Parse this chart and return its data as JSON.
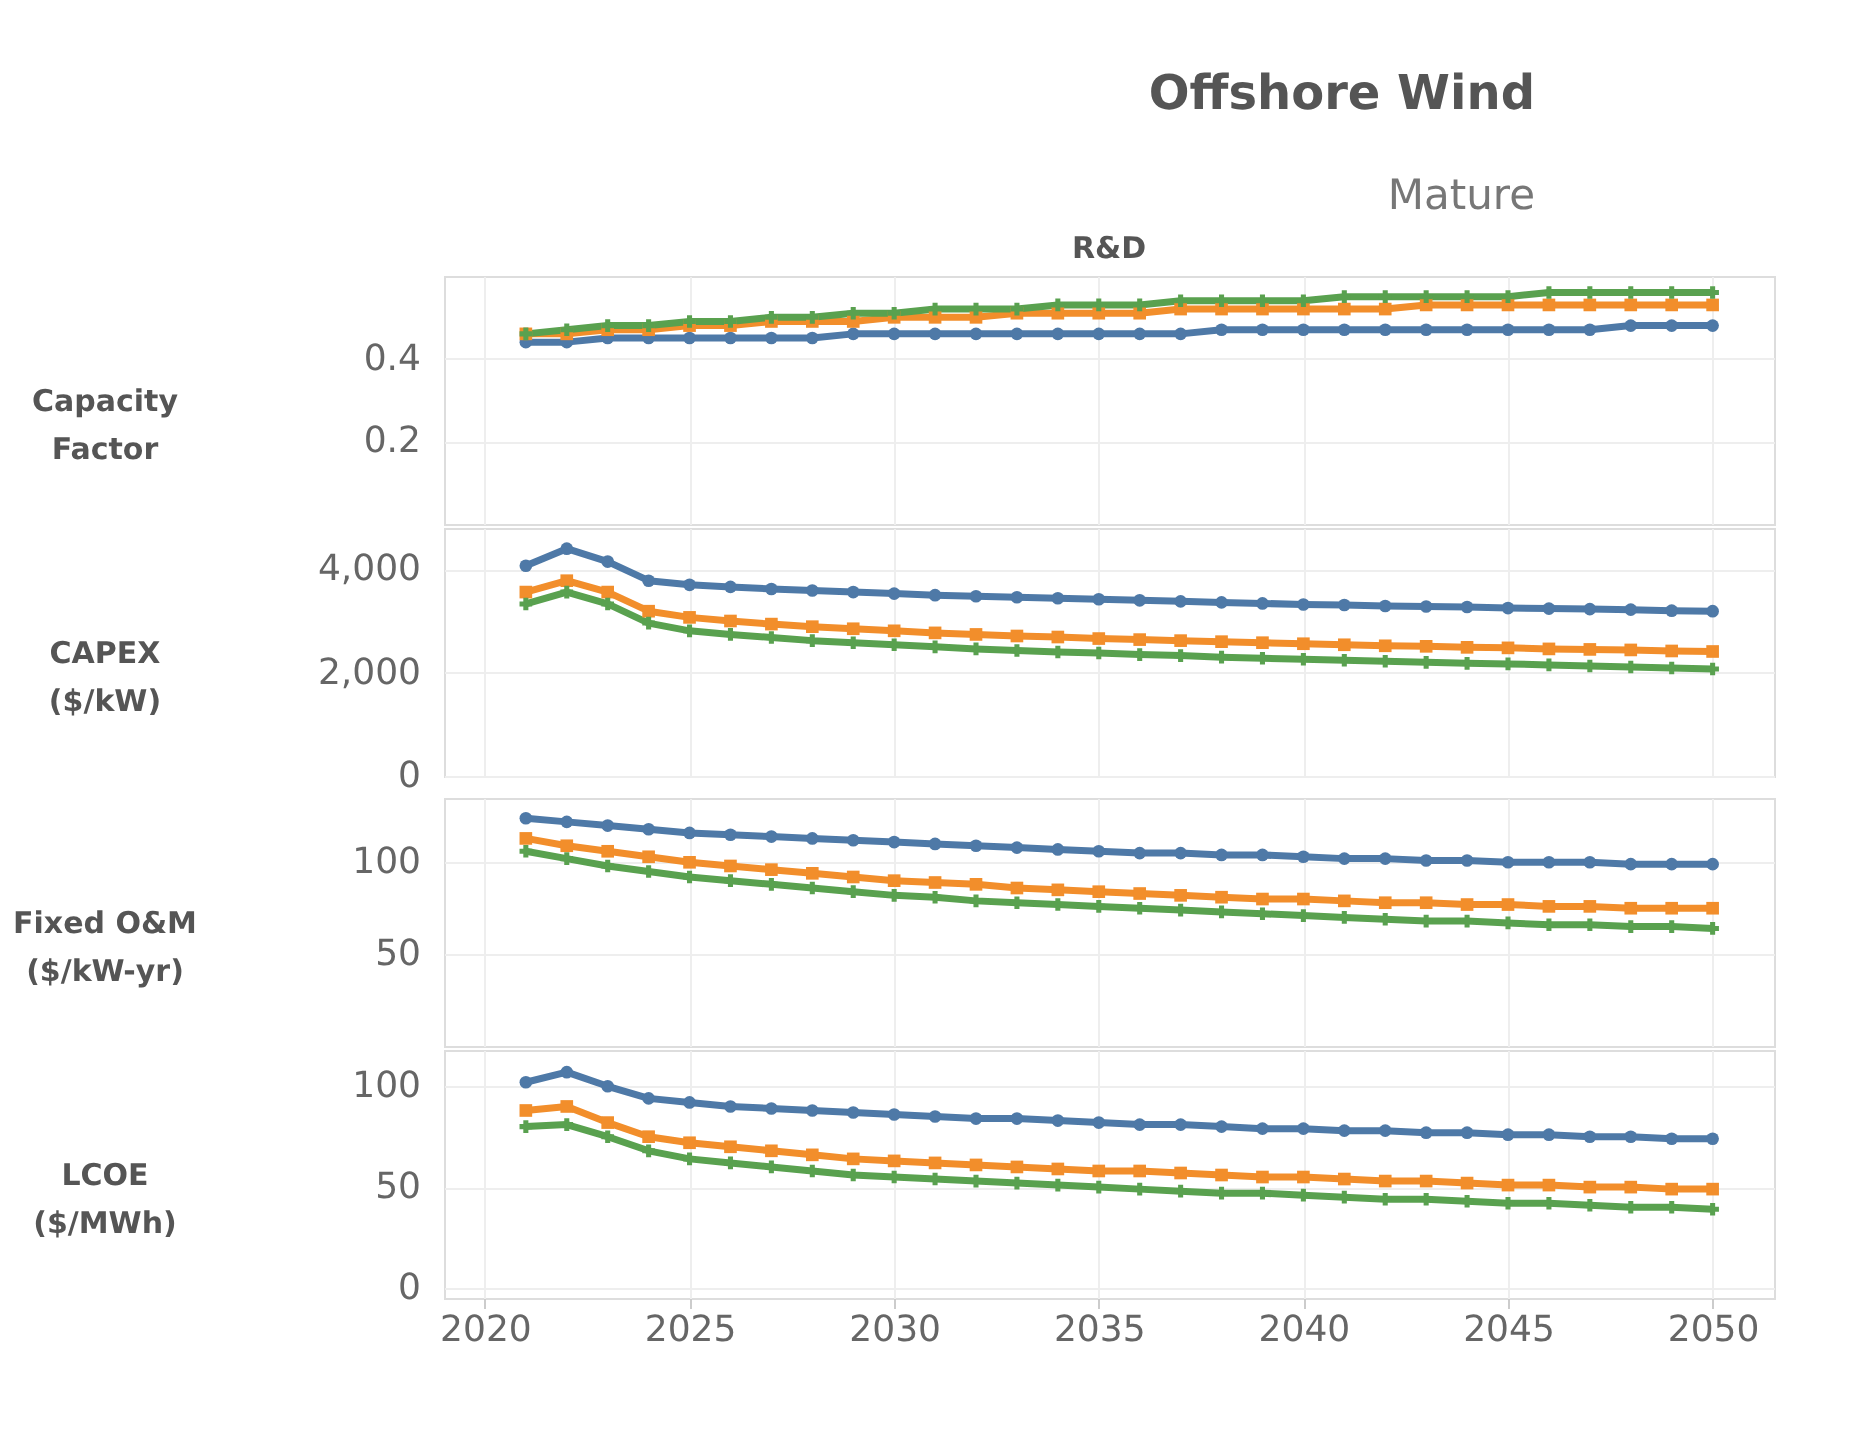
{
  "chart_data": [
    {
      "type": "line",
      "title": "Offshore Wind",
      "subtitle": "Mature",
      "annotations": [
        "R&D"
      ],
      "ylabel": "Capacity Factor",
      "x": [
        2021,
        2022,
        2023,
        2024,
        2025,
        2026,
        2027,
        2028,
        2029,
        2030,
        2031,
        2032,
        2033,
        2034,
        2035,
        2036,
        2037,
        2038,
        2039,
        2040,
        2041,
        2042,
        2043,
        2044,
        2045,
        2046,
        2047,
        2048,
        2049,
        2050
      ],
      "xlim": [
        2019,
        2051.5
      ],
      "xticks": [
        2020,
        2025,
        2030,
        2035,
        2040,
        2045,
        2050
      ],
      "ylim": [
        0,
        0.6
      ],
      "yticks": [
        0.2,
        0.4
      ],
      "tick_labels": "y",
      "grid": true,
      "legend": false,
      "line_style": "solid",
      "series": [
        {
          "color": "#4e79a7",
          "marker": "circle",
          "values": [
            0.44,
            0.44,
            0.45,
            0.45,
            0.45,
            0.45,
            0.45,
            0.45,
            0.46,
            0.46,
            0.46,
            0.46,
            0.46,
            0.46,
            0.46,
            0.46,
            0.46,
            0.47,
            0.47,
            0.47,
            0.47,
            0.47,
            0.47,
            0.47,
            0.47,
            0.47,
            0.47,
            0.48,
            0.48,
            0.48
          ]
        },
        {
          "color": "#f28e2b",
          "marker": "square",
          "values": [
            0.46,
            0.46,
            0.47,
            0.47,
            0.48,
            0.48,
            0.49,
            0.49,
            0.49,
            0.5,
            0.5,
            0.5,
            0.51,
            0.51,
            0.51,
            0.51,
            0.52,
            0.52,
            0.52,
            0.52,
            0.52,
            0.52,
            0.53,
            0.53,
            0.53,
            0.53,
            0.53,
            0.53,
            0.53,
            0.53
          ]
        },
        {
          "color": "#59a14f",
          "marker": "cross",
          "values": [
            0.46,
            0.47,
            0.48,
            0.48,
            0.49,
            0.49,
            0.5,
            0.5,
            0.51,
            0.51,
            0.52,
            0.52,
            0.52,
            0.53,
            0.53,
            0.53,
            0.54,
            0.54,
            0.54,
            0.54,
            0.55,
            0.55,
            0.55,
            0.55,
            0.55,
            0.56,
            0.56,
            0.56,
            0.56,
            0.56
          ]
        }
      ]
    },
    {
      "type": "line",
      "ylabel": "CAPEX ($/kW)",
      "x": [
        2021,
        2022,
        2023,
        2024,
        2025,
        2026,
        2027,
        2028,
        2029,
        2030,
        2031,
        2032,
        2033,
        2034,
        2035,
        2036,
        2037,
        2038,
        2039,
        2040,
        2041,
        2042,
        2043,
        2044,
        2045,
        2046,
        2047,
        2048,
        2049,
        2050
      ],
      "xlim": [
        2019,
        2051.5
      ],
      "xticks": [
        2020,
        2025,
        2030,
        2035,
        2040,
        2045,
        2050
      ],
      "ylim": [
        0,
        4800
      ],
      "yticks": [
        {
          "value": 0,
          "label": "0"
        },
        {
          "value": 2000,
          "label": "2,000"
        },
        {
          "value": 4000,
          "label": "4,000"
        }
      ],
      "tick_labels": "y",
      "grid": true,
      "legend": false,
      "line_style": "solid",
      "series": [
        {
          "color": "#4e79a7",
          "marker": "circle",
          "values": [
            4070,
            4400,
            4150,
            3780,
            3700,
            3660,
            3620,
            3590,
            3560,
            3530,
            3500,
            3480,
            3460,
            3440,
            3420,
            3400,
            3380,
            3360,
            3340,
            3320,
            3310,
            3290,
            3280,
            3270,
            3250,
            3240,
            3230,
            3220,
            3200,
            3190
          ]
        },
        {
          "color": "#f28e2b",
          "marker": "square",
          "values": [
            3560,
            3780,
            3560,
            3190,
            3070,
            3000,
            2940,
            2890,
            2850,
            2810,
            2770,
            2740,
            2710,
            2690,
            2660,
            2640,
            2620,
            2600,
            2580,
            2560,
            2540,
            2520,
            2510,
            2490,
            2480,
            2460,
            2450,
            2440,
            2420,
            2410
          ]
        },
        {
          "color": "#59a14f",
          "marker": "cross",
          "values": [
            3330,
            3560,
            3330,
            2960,
            2810,
            2740,
            2680,
            2620,
            2580,
            2540,
            2500,
            2460,
            2430,
            2400,
            2380,
            2350,
            2330,
            2300,
            2280,
            2260,
            2240,
            2220,
            2200,
            2180,
            2170,
            2150,
            2130,
            2110,
            2090,
            2070
          ]
        }
      ]
    },
    {
      "type": "line",
      "ylabel": "Fixed O&M ($/kW-yr)",
      "x": [
        2021,
        2022,
        2023,
        2024,
        2025,
        2026,
        2027,
        2028,
        2029,
        2030,
        2031,
        2032,
        2033,
        2034,
        2035,
        2036,
        2037,
        2038,
        2039,
        2040,
        2041,
        2042,
        2043,
        2044,
        2045,
        2046,
        2047,
        2048,
        2049,
        2050
      ],
      "xlim": [
        2019,
        2051.5
      ],
      "xticks": [
        2020,
        2025,
        2030,
        2035,
        2040,
        2045,
        2050
      ],
      "ylim": [
        0,
        135
      ],
      "yticks": [
        50,
        100
      ],
      "tick_labels": "y",
      "grid": true,
      "legend": false,
      "line_style": "solid",
      "series": [
        {
          "color": "#4e79a7",
          "marker": "circle",
          "values": [
            124,
            122,
            120,
            118,
            116,
            115,
            114,
            113,
            112,
            111,
            110,
            109,
            108,
            107,
            106,
            105,
            105,
            104,
            104,
            103,
            102,
            102,
            101,
            101,
            100,
            100,
            100,
            99,
            99,
            99
          ]
        },
        {
          "color": "#f28e2b",
          "marker": "square",
          "values": [
            113,
            109,
            106,
            103,
            100,
            98,
            96,
            94,
            92,
            90,
            89,
            88,
            86,
            85,
            84,
            83,
            82,
            81,
            80,
            80,
            79,
            78,
            78,
            77,
            77,
            76,
            76,
            75,
            75,
            75
          ]
        },
        {
          "color": "#59a14f",
          "marker": "cross",
          "values": [
            106,
            102,
            98,
            95,
            92,
            90,
            88,
            86,
            84,
            82,
            81,
            79,
            78,
            77,
            76,
            75,
            74,
            73,
            72,
            71,
            70,
            69,
            68,
            68,
            67,
            66,
            66,
            65,
            65,
            64
          ]
        }
      ]
    },
    {
      "type": "line",
      "ylabel": "LCOE ($/MWh)",
      "x": [
        2021,
        2022,
        2023,
        2024,
        2025,
        2026,
        2027,
        2028,
        2029,
        2030,
        2031,
        2032,
        2033,
        2034,
        2035,
        2036,
        2037,
        2038,
        2039,
        2040,
        2041,
        2042,
        2043,
        2044,
        2045,
        2046,
        2047,
        2048,
        2049,
        2050
      ],
      "xlim": [
        2019,
        2051.5
      ],
      "xticks": [
        2020,
        2025,
        2030,
        2035,
        2040,
        2045,
        2050
      ],
      "ylim": [
        -5,
        118
      ],
      "yticks": [
        0,
        50,
        100
      ],
      "grid": true,
      "legend": false,
      "line_style": "solid",
      "series": [
        {
          "color": "#4e79a7",
          "marker": "circle",
          "values": [
            102,
            107,
            100,
            94,
            92,
            90,
            89,
            88,
            87,
            86,
            85,
            84,
            84,
            83,
            82,
            81,
            81,
            80,
            79,
            79,
            78,
            78,
            77,
            77,
            76,
            76,
            75,
            75,
            74,
            74
          ]
        },
        {
          "color": "#f28e2b",
          "marker": "square",
          "values": [
            88,
            90,
            82,
            75,
            72,
            70,
            68,
            66,
            64,
            63,
            62,
            61,
            60,
            59,
            58,
            58,
            57,
            56,
            55,
            55,
            54,
            53,
            53,
            52,
            51,
            51,
            50,
            50,
            49,
            49
          ]
        },
        {
          "color": "#59a14f",
          "marker": "cross",
          "values": [
            80,
            81,
            75,
            68,
            64,
            62,
            60,
            58,
            56,
            55,
            54,
            53,
            52,
            51,
            50,
            49,
            48,
            47,
            47,
            46,
            45,
            44,
            44,
            43,
            42,
            42,
            41,
            40,
            40,
            39
          ]
        }
      ]
    }
  ]
}
